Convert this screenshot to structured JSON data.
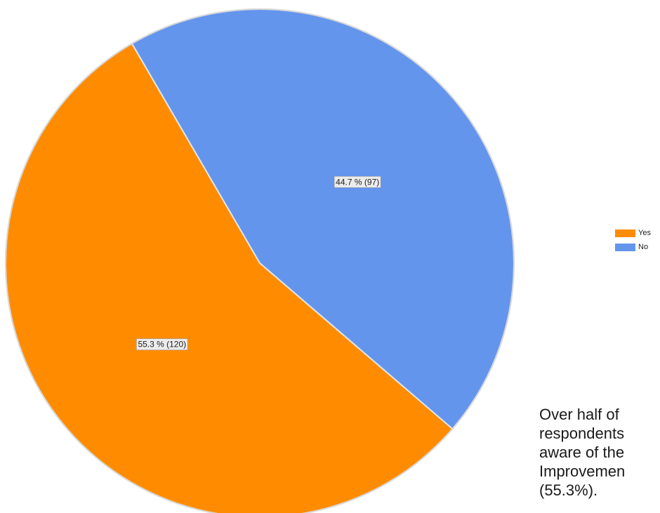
{
  "chart_data": {
    "type": "pie",
    "title": "",
    "slices": [
      {
        "label": "Yes",
        "value": 120,
        "percent": 55.3,
        "color": "#FF8C00",
        "data_label": "55.3 % (120)"
      },
      {
        "label": "No",
        "value": 97,
        "percent": 44.7,
        "color": "#6495ED",
        "data_label": "44.7 % (97)"
      }
    ],
    "legend": {
      "placement": "right",
      "entries": [
        "Yes",
        "No"
      ]
    }
  },
  "caption": {
    "text": "Over half of\nrespondents\naware of the\nImprovemen\n(55.3%)."
  }
}
